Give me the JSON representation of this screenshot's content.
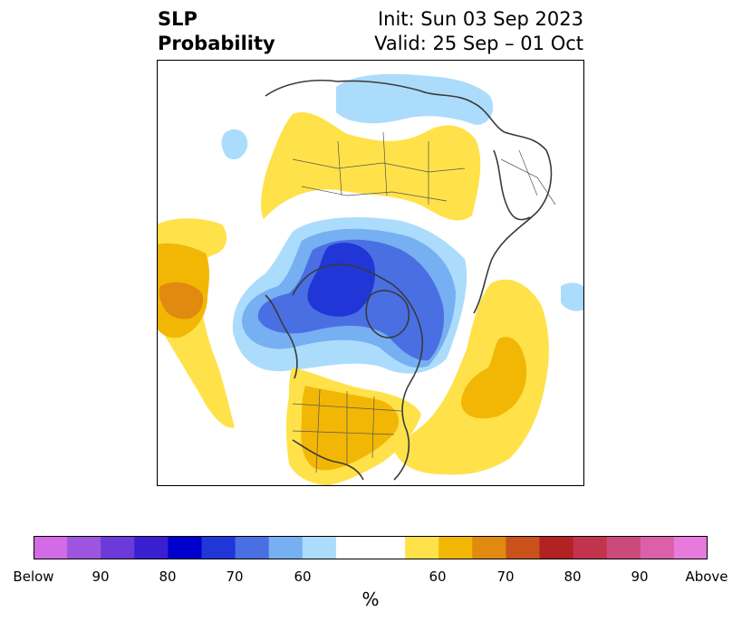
{
  "header": {
    "title_line1": "SLP",
    "title_line2": "Probability",
    "init_label": "Init: Sun 03 Sep 2023",
    "valid_label": "Valid: 25 Sep – 01 Oct"
  },
  "colorbar": {
    "unit": "%",
    "tick_labels": [
      "Below",
      "90",
      "80",
      "70",
      "60",
      "60",
      "70",
      "80",
      "90",
      "Above"
    ],
    "colors": [
      "#d36be6",
      "#9d55e0",
      "#6b3ad9",
      "#3a1fd2",
      "#0000cc",
      "#2136d6",
      "#4a6fe3",
      "#76aff2",
      "#acdcfb",
      "#ffffff",
      "#ffe24a",
      "#f2b705",
      "#e08a0f",
      "#c8521a",
      "#b12222",
      "#c2344d",
      "#cc4a7a",
      "#dc5fa9",
      "#e87ade"
    ]
  }
}
